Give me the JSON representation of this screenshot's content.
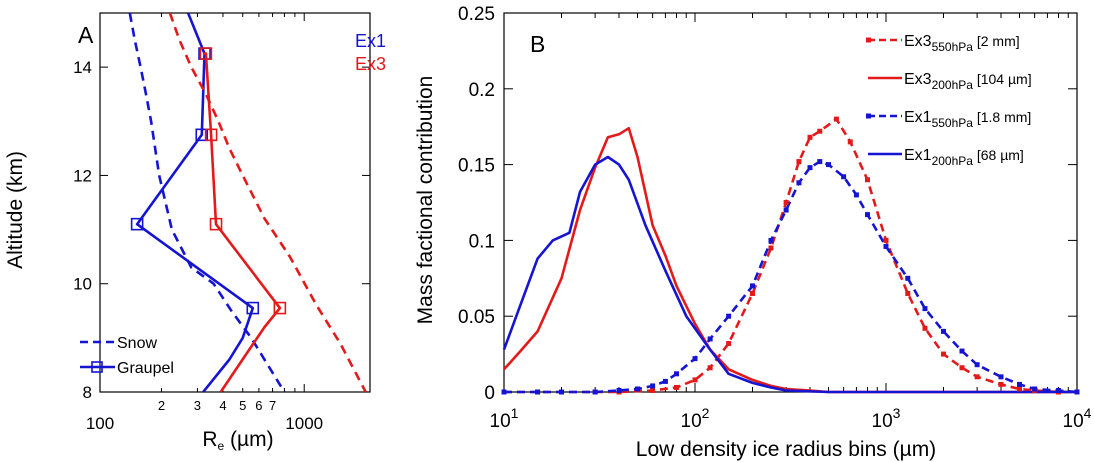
{
  "chart_data": [
    {
      "panel": "A",
      "type": "line",
      "xscale": "log",
      "xlabel": "R",
      "xlabel_sub": "e",
      "xlabel_unit": " (µm)",
      "ylabel": "Altitude (km)",
      "xlim": [
        100,
        2100
      ],
      "ylim": [
        8,
        15
      ],
      "xtick_labels": [
        "100",
        "1000"
      ],
      "xtick_minor_labels": [
        "2",
        "3",
        "4",
        "5",
        "6",
        "7"
      ],
      "ytick_labels": [
        "8",
        "10",
        "12",
        "14"
      ],
      "case_labels": [
        {
          "text": "Ex1",
          "color": "#1414d2"
        },
        {
          "text": "Ex3",
          "color": "#e41a1a"
        }
      ],
      "legend": {
        "snow": "Snow",
        "graupel": "Graupel"
      },
      "series": [
        {
          "case": "Ex1",
          "kind": "snow",
          "color": "#1414d2",
          "dashed": true,
          "markers": false,
          "x": [
            140,
            148,
            158,
            168,
            178,
            195,
            225,
            280,
            360,
            440,
            550,
            800
          ],
          "y": [
            15,
            14.5,
            14,
            13.5,
            13,
            12,
            11,
            10.3,
            10,
            9.5,
            9,
            8
          ]
        },
        {
          "case": "Ex1",
          "kind": "graupel",
          "color": "#1414d2",
          "dashed": false,
          "markers": true,
          "x": [
            270,
            325,
            315,
            152,
            560,
            500,
            430,
            320
          ],
          "y": [
            15,
            14.25,
            12.75,
            11.1,
            9.55,
            9.0,
            8.6,
            8
          ]
        },
        {
          "case": "Ex3",
          "kind": "snow",
          "color": "#e41a1a",
          "dashed": true,
          "markers": false,
          "x": [
            220,
            245,
            280,
            330,
            380,
            430,
            500,
            640,
            850,
            1150,
            1500,
            2000
          ],
          "y": [
            15,
            14.5,
            14,
            13.5,
            13,
            12.5,
            12,
            11.2,
            10.5,
            9.6,
            8.9,
            8
          ]
        },
        {
          "case": "Ex3",
          "kind": "graupel",
          "color": "#e41a1a",
          "dashed": false,
          "markers": true,
          "x": [
            320,
            330,
            350,
            370,
            760,
            640,
            520,
            390
          ],
          "y": [
            14.25,
            14.25,
            12.75,
            11.1,
            9.55,
            9.2,
            8.7,
            8
          ]
        }
      ],
      "graupel_markers": {
        "Ex1": {
          "x": [
            325,
            315,
            152,
            560
          ],
          "y": [
            14.25,
            12.75,
            11.1,
            9.55
          ]
        },
        "Ex3": {
          "x": [
            330,
            350,
            370,
            760
          ],
          "y": [
            14.25,
            12.75,
            11.1,
            9.55
          ]
        }
      }
    },
    {
      "panel": "B",
      "type": "line",
      "xscale": "log",
      "xlabel": "Low density ice radius bins (µm)",
      "ylabel": "Mass factional contribution",
      "xlim": [
        10,
        10000
      ],
      "ylim": [
        0,
        0.25
      ],
      "xtick_labels": [
        {
          "base": "10",
          "exp": "1"
        },
        {
          "base": "10",
          "exp": "2"
        },
        {
          "base": "10",
          "exp": "3"
        },
        {
          "base": "10",
          "exp": "4"
        }
      ],
      "ytick_labels": [
        "0",
        "0.05",
        "0.1",
        "0.15",
        "0.2",
        "0.25"
      ],
      "legend": [
        {
          "main": "Ex3",
          "sub": "550hPa",
          "note": " [2 mm]",
          "color": "#e41a1a",
          "dashed": true
        },
        {
          "main": "Ex3",
          "sub": "200hPa",
          "note": " [104 µm]",
          "color": "#e41a1a",
          "dashed": false
        },
        {
          "main": "Ex1",
          "sub": "550hPa",
          "note": " [1.8 mm]",
          "color": "#1414d2",
          "dashed": true
        },
        {
          "main": "Ex1",
          "sub": "200hPa",
          "note": " [68 µm]",
          "color": "#1414d2",
          "dashed": false
        }
      ],
      "series": [
        {
          "name": "Ex3 550hPa",
          "color": "#e41a1a",
          "dashed": true,
          "markers": true,
          "x": [
            10,
            15,
            20,
            30,
            40,
            60,
            80,
            100,
            120,
            150,
            200,
            250,
            300,
            350,
            400,
            450,
            550,
            650,
            800,
            1000,
            1300,
            1600,
            2000,
            2500,
            3000,
            4000,
            5000,
            6000,
            8000,
            10000
          ],
          "y": [
            0.0,
            0.0,
            0.0,
            0.0,
            0.0,
            0.001,
            0.003,
            0.008,
            0.016,
            0.032,
            0.065,
            0.095,
            0.125,
            0.152,
            0.168,
            0.172,
            0.18,
            0.165,
            0.14,
            0.1,
            0.065,
            0.042,
            0.025,
            0.016,
            0.01,
            0.005,
            0.002,
            0.001,
            0.0,
            0.0
          ]
        },
        {
          "name": "Ex3 200hPa",
          "color": "#e41a1a",
          "dashed": false,
          "markers": false,
          "x": [
            10,
            12,
            15,
            20,
            25,
            30,
            35,
            40,
            45,
            50,
            60,
            70,
            80,
            100,
            120,
            150,
            200,
            250,
            300,
            400,
            500,
            700,
            1000,
            10000
          ],
          "y": [
            0.015,
            0.026,
            0.04,
            0.075,
            0.12,
            0.148,
            0.168,
            0.17,
            0.174,
            0.155,
            0.11,
            0.09,
            0.07,
            0.045,
            0.028,
            0.015,
            0.008,
            0.004,
            0.002,
            0.001,
            0.0,
            0.0,
            0.0,
            0.0
          ]
        },
        {
          "name": "Ex1 550hPa",
          "color": "#1414d2",
          "dashed": true,
          "markers": true,
          "x": [
            10,
            15,
            20,
            30,
            40,
            50,
            60,
            70,
            80,
            100,
            120,
            150,
            200,
            250,
            300,
            350,
            400,
            450,
            500,
            600,
            700,
            800,
            1000,
            1300,
            1600,
            2000,
            2500,
            3000,
            4000,
            5000,
            6000,
            8000,
            10000
          ],
          "y": [
            0.0,
            0.0,
            0.0,
            0.0,
            0.001,
            0.002,
            0.004,
            0.007,
            0.012,
            0.022,
            0.035,
            0.05,
            0.07,
            0.1,
            0.12,
            0.138,
            0.148,
            0.152,
            0.15,
            0.142,
            0.13,
            0.117,
            0.096,
            0.075,
            0.055,
            0.04,
            0.027,
            0.018,
            0.01,
            0.005,
            0.002,
            0.001,
            0.0
          ]
        },
        {
          "name": "Ex1 200hPa",
          "color": "#1414d2",
          "dashed": false,
          "markers": false,
          "x": [
            10,
            12,
            15,
            18,
            22,
            25,
            30,
            35,
            40,
            45,
            55,
            70,
            90,
            120,
            150,
            200,
            250,
            300,
            500,
            10000
          ],
          "y": [
            0.028,
            0.055,
            0.088,
            0.1,
            0.105,
            0.132,
            0.15,
            0.155,
            0.15,
            0.14,
            0.11,
            0.08,
            0.05,
            0.028,
            0.012,
            0.006,
            0.003,
            0.001,
            0.0,
            0.0
          ]
        }
      ]
    }
  ]
}
